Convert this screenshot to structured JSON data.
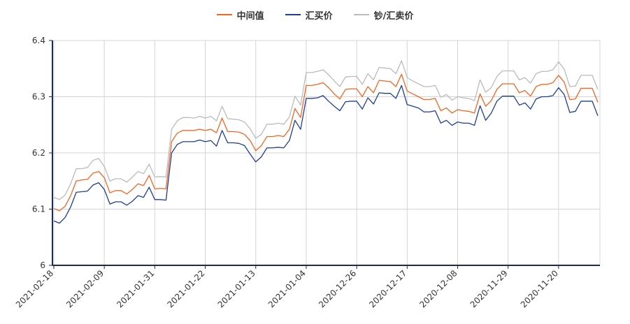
{
  "chart_data": {
    "type": "line",
    "title": "",
    "xlabel": "",
    "ylabel": "",
    "ylim": [
      6.0,
      6.4
    ],
    "y_ticks": [
      "6",
      "6.1",
      "6.2",
      "6.3",
      "6.4"
    ],
    "grid": true,
    "legend_position": "top-center",
    "x_tick_labels": [
      "2021-02-18",
      "2021-02-09",
      "2021-01-31",
      "2021-01-22",
      "2021-01-13",
      "2021-01-04",
      "2020-12-26",
      "2020-12-17",
      "2020-12-08",
      "2020-11-29",
      "2020-11-20"
    ],
    "series": [
      {
        "name": "中间值",
        "color": "#f26522",
        "values": [
          6.101,
          6.097,
          6.105,
          6.124,
          6.15,
          6.152,
          6.153,
          6.164,
          6.167,
          6.156,
          6.129,
          6.133,
          6.133,
          6.127,
          6.135,
          6.145,
          6.142,
          6.16,
          6.136,
          6.137,
          6.136,
          6.22,
          6.235,
          6.24,
          6.24,
          6.24,
          6.242,
          6.24,
          6.242,
          6.236,
          6.262,
          6.238,
          6.238,
          6.237,
          6.233,
          6.222,
          6.204,
          6.213,
          6.229,
          6.229,
          6.231,
          6.229,
          6.242,
          6.279,
          6.263,
          6.32,
          6.32,
          6.322,
          6.325,
          6.316,
          6.305,
          6.296,
          6.313,
          6.314,
          6.314,
          6.3,
          6.318,
          6.307,
          6.329,
          6.328,
          6.327,
          6.318,
          6.34,
          6.31,
          6.305,
          6.3,
          6.295,
          6.295,
          6.297,
          6.275,
          6.28,
          6.271,
          6.277,
          6.275,
          6.274,
          6.271,
          6.305,
          6.283,
          6.293,
          6.313,
          6.323,
          6.323,
          6.323,
          6.307,
          6.311,
          6.301,
          6.318,
          6.322,
          6.322,
          6.325,
          6.338,
          6.326,
          6.295,
          6.296,
          6.315,
          6.315,
          6.315,
          6.29
        ]
      },
      {
        "name": "汇买价",
        "color": "#1f3d99",
        "values": [
          6.079,
          6.075,
          6.085,
          6.104,
          6.13,
          6.131,
          6.132,
          6.143,
          6.147,
          6.135,
          6.109,
          6.113,
          6.113,
          6.107,
          6.114,
          6.124,
          6.121,
          6.139,
          6.117,
          6.117,
          6.116,
          6.2,
          6.215,
          6.22,
          6.22,
          6.22,
          6.223,
          6.22,
          6.222,
          6.212,
          6.24,
          6.218,
          6.218,
          6.217,
          6.213,
          6.198,
          6.184,
          6.193,
          6.209,
          6.209,
          6.21,
          6.209,
          6.222,
          6.258,
          6.242,
          6.297,
          6.297,
          6.298,
          6.302,
          6.292,
          6.283,
          6.275,
          6.291,
          6.292,
          6.292,
          6.278,
          6.298,
          6.287,
          6.307,
          6.306,
          6.306,
          6.297,
          6.32,
          6.286,
          6.283,
          6.28,
          6.273,
          6.273,
          6.275,
          6.253,
          6.258,
          6.249,
          6.255,
          6.253,
          6.253,
          6.249,
          6.284,
          6.258,
          6.271,
          6.292,
          6.301,
          6.301,
          6.301,
          6.285,
          6.289,
          6.278,
          6.296,
          6.3,
          6.3,
          6.302,
          6.316,
          6.304,
          6.272,
          6.274,
          6.292,
          6.292,
          6.292,
          6.266
        ]
      },
      {
        "name": "钞/汇卖价",
        "color": "#bbbbbb",
        "values": [
          6.121,
          6.117,
          6.125,
          6.145,
          6.172,
          6.172,
          6.174,
          6.187,
          6.19,
          6.176,
          6.15,
          6.154,
          6.154,
          6.148,
          6.157,
          6.167,
          6.163,
          6.18,
          6.157,
          6.158,
          6.157,
          6.242,
          6.257,
          6.263,
          6.263,
          6.262,
          6.265,
          6.262,
          6.265,
          6.257,
          6.283,
          6.261,
          6.26,
          6.259,
          6.255,
          6.243,
          6.226,
          6.233,
          6.251,
          6.251,
          6.253,
          6.251,
          6.264,
          6.301,
          6.285,
          6.343,
          6.343,
          6.345,
          6.348,
          6.339,
          6.328,
          6.318,
          6.335,
          6.336,
          6.336,
          6.322,
          6.341,
          6.33,
          6.352,
          6.351,
          6.35,
          6.341,
          6.364,
          6.334,
          6.328,
          6.323,
          6.318,
          6.318,
          6.32,
          6.299,
          6.304,
          6.294,
          6.3,
          6.298,
          6.297,
          6.293,
          6.33,
          6.308,
          6.316,
          6.336,
          6.346,
          6.346,
          6.346,
          6.33,
          6.334,
          6.324,
          6.341,
          6.345,
          6.345,
          6.348,
          6.362,
          6.349,
          6.318,
          6.319,
          6.338,
          6.338,
          6.338,
          6.313
        ]
      }
    ]
  }
}
